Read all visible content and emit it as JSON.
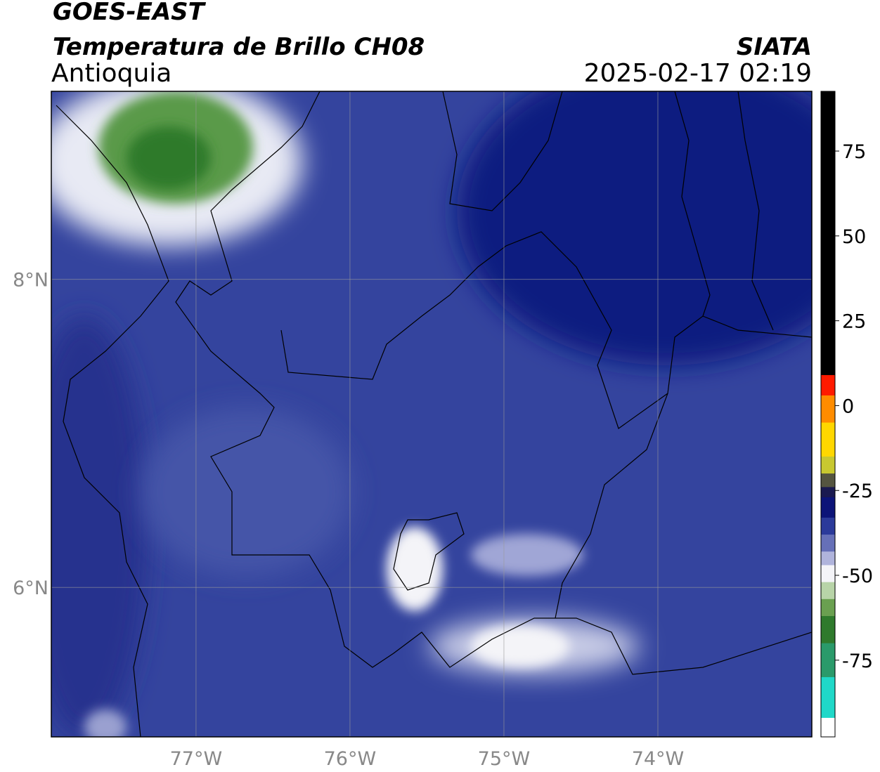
{
  "header": {
    "title": "GOES-EAST",
    "subtitle": "Temperatura de Brillo CH08",
    "region": "Antioquia",
    "source": "SIATA",
    "datetime": "2025-02-17 02:19"
  },
  "map": {
    "xlim": [
      -77.94,
      -73.0
    ],
    "ylim": [
      5.03,
      9.22
    ],
    "xticks": [
      {
        "value": -77,
        "label": "77°W"
      },
      {
        "value": -76,
        "label": "76°W"
      },
      {
        "value": -75,
        "label": "75°W"
      },
      {
        "value": -74,
        "label": "74°W"
      }
    ],
    "yticks": [
      {
        "value": 6,
        "label": "6°N"
      },
      {
        "value": 8,
        "label": "8°N"
      }
    ]
  },
  "colorbar": {
    "clim": [
      -97.6,
      92.6
    ],
    "ticks": [
      75,
      50,
      25,
      0,
      -25,
      -50,
      -75
    ],
    "bands": [
      {
        "from": 92.6,
        "to": 9,
        "color": "#000000"
      },
      {
        "from": 9,
        "to": 3,
        "color": "#ff1a00"
      },
      {
        "from": 3,
        "to": -5,
        "color": "#ff8c00"
      },
      {
        "from": -5,
        "to": -15,
        "color": "#ffd700"
      },
      {
        "from": -15,
        "to": -20,
        "color": "#c8c830"
      },
      {
        "from": -20,
        "to": -24,
        "color": "#555540"
      },
      {
        "from": -24,
        "to": -27,
        "color": "#1a1a50"
      },
      {
        "from": -27,
        "to": -33,
        "color": "#0c1478"
      },
      {
        "from": -33,
        "to": -38,
        "color": "#2b3a9a"
      },
      {
        "from": -38,
        "to": -43,
        "color": "#6670b8"
      },
      {
        "from": -43,
        "to": -47,
        "color": "#b0b4dc"
      },
      {
        "from": -47,
        "to": -52,
        "color": "#f4f4f8"
      },
      {
        "from": -52,
        "to": -57,
        "color": "#b8d4a8"
      },
      {
        "from": -57,
        "to": -62,
        "color": "#6aa050"
      },
      {
        "from": -62,
        "to": -70,
        "color": "#2f7a2c"
      },
      {
        "from": -70,
        "to": -80,
        "color": "#2a9a6a"
      },
      {
        "from": -80,
        "to": -92,
        "color": "#20d8c8"
      },
      {
        "from": -92,
        "to": -97.6,
        "color": "#ffffff"
      }
    ]
  }
}
